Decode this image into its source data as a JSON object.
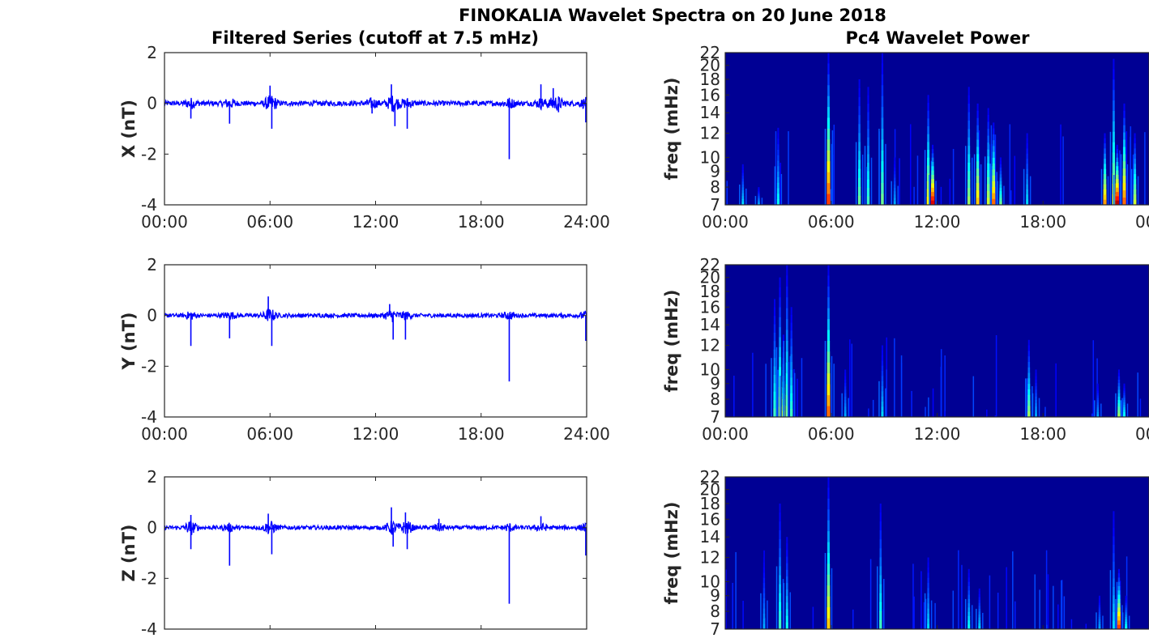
{
  "title": "FINOKALIA Wavelet Spectra on 20 June 2018",
  "chart_data": [
    {
      "id": "x-series",
      "type": "line",
      "title": "Filtered Series (cutoff at 7.5 mHz)",
      "ylabel": "X (nT)",
      "ylim": [
        -4,
        2
      ],
      "yticks": [
        "2",
        "0",
        "-2",
        "-4"
      ],
      "xticks": [
        "00:00",
        "06:00",
        "12:00",
        "18:00",
        "24:00"
      ],
      "xlim_hours": [
        0,
        24
      ],
      "color": "#0000ff",
      "noise_amplitude": 0.1,
      "spikes": [
        [
          1.5,
          -0.6
        ],
        [
          3.7,
          -0.8
        ],
        [
          6.0,
          0.7
        ],
        [
          6.1,
          -1.0
        ],
        [
          11.8,
          -0.4
        ],
        [
          12.9,
          0.75
        ],
        [
          13.1,
          -0.9
        ],
        [
          13.8,
          -1.0
        ],
        [
          19.6,
          -2.2
        ],
        [
          21.4,
          0.75
        ],
        [
          22.1,
          0.6
        ],
        [
          22.4,
          -0.35
        ],
        [
          23.95,
          -0.75
        ]
      ]
    },
    {
      "id": "y-series",
      "type": "line",
      "ylabel": "Y (nT)",
      "ylim": [
        -4,
        2
      ],
      "yticks": [
        "2",
        "0",
        "-2",
        "-4"
      ],
      "xticks": [
        "00:00",
        "06:00",
        "12:00",
        "18:00",
        "24:00"
      ],
      "xlim_hours": [
        0,
        24
      ],
      "color": "#0000ff",
      "noise_amplitude": 0.08,
      "spikes": [
        [
          1.5,
          -1.2
        ],
        [
          3.7,
          -0.9
        ],
        [
          5.9,
          0.75
        ],
        [
          6.1,
          -1.2
        ],
        [
          12.8,
          0.45
        ],
        [
          13.0,
          -0.95
        ],
        [
          13.7,
          -0.95
        ],
        [
          19.6,
          -2.6
        ],
        [
          23.95,
          -1.0
        ]
      ]
    },
    {
      "id": "z-series",
      "type": "line",
      "ylabel": "Z (nT)",
      "ylim": [
        -4,
        2
      ],
      "yticks": [
        "2",
        "0",
        "-2",
        "-4"
      ],
      "xticks": [],
      "xlim_hours": [
        0,
        24
      ],
      "color": "#0000ff",
      "noise_amplitude": 0.08,
      "spikes": [
        [
          1.5,
          0.5
        ],
        [
          1.5,
          -0.85
        ],
        [
          3.7,
          -1.5
        ],
        [
          5.9,
          0.55
        ],
        [
          6.1,
          -1.05
        ],
        [
          12.9,
          0.8
        ],
        [
          13.0,
          -0.75
        ],
        [
          13.7,
          0.6
        ],
        [
          13.8,
          -0.85
        ],
        [
          15.6,
          0.35
        ],
        [
          19.6,
          -3.0
        ],
        [
          21.4,
          0.45
        ],
        [
          23.95,
          -1.1
        ]
      ]
    },
    {
      "id": "x-wavelet",
      "type": "heatmap",
      "title": "Pc4 Wavelet Power",
      "ylabel": "freq (mHz)",
      "yticks": [
        "22",
        "20",
        "18",
        "16",
        "14",
        "12",
        "10",
        "9",
        "8",
        "7"
      ],
      "ylim_mhz": [
        7,
        22
      ],
      "xticks": [
        "00:00",
        "06:00",
        "12:00",
        "18:00",
        "00"
      ],
      "xlim_hours": [
        0,
        24
      ],
      "colormap": "jet",
      "streaks": [
        [
          1.0,
          9.5,
          0.35
        ],
        [
          1.9,
          8.0,
          0.3
        ],
        [
          3.0,
          12.5,
          0.4
        ],
        [
          5.85,
          22,
          0.85
        ],
        [
          7.6,
          18,
          0.5
        ],
        [
          8.1,
          17,
          0.45
        ],
        [
          8.9,
          22,
          0.5
        ],
        [
          9.6,
          10,
          0.3
        ],
        [
          11.5,
          16,
          0.65
        ],
        [
          11.75,
          11,
          0.95
        ],
        [
          13.8,
          17,
          0.55
        ],
        [
          14.3,
          15,
          0.7
        ],
        [
          14.9,
          14.5,
          0.6
        ],
        [
          15.2,
          13,
          0.8
        ],
        [
          15.6,
          10,
          0.5
        ],
        [
          17.1,
          12,
          0.35
        ],
        [
          21.5,
          12,
          0.75
        ],
        [
          22.0,
          21,
          0.6
        ],
        [
          22.2,
          11,
          0.98
        ],
        [
          22.6,
          15,
          0.8
        ],
        [
          23.2,
          12,
          0.6
        ]
      ]
    },
    {
      "id": "y-wavelet",
      "type": "heatmap",
      "ylabel": "freq (mHz)",
      "yticks": [
        "22",
        "20",
        "18",
        "16",
        "14",
        "12",
        "10",
        "9",
        "8",
        "7"
      ],
      "ylim_mhz": [
        7,
        22
      ],
      "xticks": [
        "00:00",
        "06:00",
        "12:00",
        "18:00",
        "00"
      ],
      "xlim_hours": [
        0,
        24
      ],
      "colormap": "jet",
      "streaks": [
        [
          2.8,
          17,
          0.45
        ],
        [
          3.1,
          20,
          0.55
        ],
        [
          3.3,
          13,
          0.55
        ],
        [
          3.5,
          22,
          0.5
        ],
        [
          3.75,
          16,
          0.45
        ],
        [
          5.85,
          22,
          0.8
        ],
        [
          6.8,
          10,
          0.3
        ],
        [
          8.9,
          12,
          0.35
        ],
        [
          17.2,
          12.5,
          0.55
        ],
        [
          17.6,
          10,
          0.3
        ],
        [
          21.1,
          9,
          0.3
        ],
        [
          22.3,
          10,
          0.55
        ],
        [
          22.6,
          9,
          0.4
        ]
      ]
    },
    {
      "id": "z-wavelet",
      "type": "heatmap",
      "ylabel": "freq (mHz)",
      "yticks": [
        "22",
        "20",
        "18",
        "16",
        "14",
        "12",
        "10",
        "9",
        "8",
        "7"
      ],
      "ylim_mhz": [
        7,
        22
      ],
      "xticks": [],
      "xlim_hours": [
        0,
        24
      ],
      "colormap": "jet",
      "streaks": [
        [
          2.2,
          12,
          0.3
        ],
        [
          3.1,
          18,
          0.45
        ],
        [
          3.5,
          14,
          0.4
        ],
        [
          5.85,
          22,
          0.7
        ],
        [
          8.8,
          18,
          0.45
        ],
        [
          11.5,
          12,
          0.35
        ],
        [
          13.8,
          11,
          0.4
        ],
        [
          14.4,
          9.5,
          0.35
        ],
        [
          21.2,
          9,
          0.3
        ],
        [
          22.0,
          17,
          0.35
        ],
        [
          22.3,
          11,
          0.85
        ],
        [
          22.7,
          9,
          0.4
        ]
      ]
    }
  ]
}
